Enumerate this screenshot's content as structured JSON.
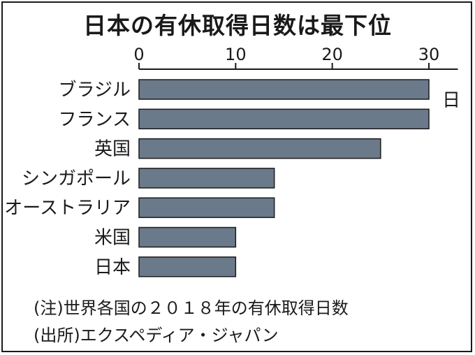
{
  "title": "日本の有休取得日数は最下位",
  "unit": "日",
  "notes": {
    "note1": "(注)世界各国の２０１８年の有休取得日数",
    "note2": "(出所)エクスペディア・ジャパン"
  },
  "colors": {
    "bar": "#6b7a8a",
    "bar_stroke": "#1a1a1a",
    "axis": "#1a1a1a"
  },
  "chart_data": {
    "type": "bar",
    "orientation": "horizontal",
    "title": "日本の有休取得日数は最下位",
    "categories": [
      "ブラジル",
      "フランス",
      "英国",
      "シンガポール",
      "オーストラリア",
      "米国",
      "日本"
    ],
    "values": [
      30,
      30,
      25,
      14,
      14,
      10,
      10
    ],
    "xlim": [
      0,
      33
    ],
    "xticks": [
      0,
      10,
      20,
      30
    ],
    "xtick_labels": [
      "0",
      "10",
      "20",
      "30"
    ],
    "unit": "日",
    "grid": false
  }
}
